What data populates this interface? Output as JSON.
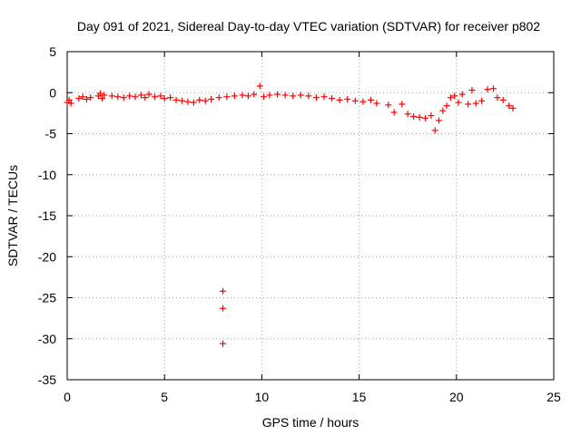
{
  "chart_data": {
    "type": "scatter",
    "title": "Day 091 of 2021, Sidereal Day-to-day VTEC variation (SDTVAR) for receiver p802",
    "xlabel": "GPS time / hours",
    "ylabel": "SDTVAR / TECUs",
    "xlim": [
      0,
      25
    ],
    "ylim": [
      -35,
      5
    ],
    "xticks": [
      0,
      5,
      10,
      15,
      20,
      25
    ],
    "yticks": [
      5,
      0,
      -5,
      -10,
      -15,
      -20,
      -25,
      -30,
      -35
    ],
    "grid": true,
    "marker": "+",
    "color": "#ff0000",
    "series": [
      {
        "name": "SDTVAR",
        "points": [
          [
            0.0,
            -1.2
          ],
          [
            0.1,
            -0.9
          ],
          [
            0.2,
            -1.3
          ],
          [
            0.6,
            -0.7
          ],
          [
            0.8,
            -0.5
          ],
          [
            1.0,
            -0.8
          ],
          [
            1.2,
            -0.6
          ],
          [
            1.6,
            -0.4
          ],
          [
            1.7,
            -0.1
          ],
          [
            1.8,
            -0.7
          ],
          [
            1.9,
            -0.3
          ],
          [
            2.3,
            -0.4
          ],
          [
            2.6,
            -0.5
          ],
          [
            2.9,
            -0.6
          ],
          [
            3.2,
            -0.4
          ],
          [
            3.5,
            -0.5
          ],
          [
            3.8,
            -0.3
          ],
          [
            4.0,
            -0.6
          ],
          [
            4.2,
            -0.2
          ],
          [
            4.5,
            -0.5
          ],
          [
            4.8,
            -0.4
          ],
          [
            5.0,
            -0.7
          ],
          [
            5.3,
            -0.6
          ],
          [
            5.6,
            -0.9
          ],
          [
            5.9,
            -1.0
          ],
          [
            6.2,
            -1.1
          ],
          [
            6.5,
            -1.2
          ],
          [
            6.8,
            -0.9
          ],
          [
            7.1,
            -1.0
          ],
          [
            7.4,
            -0.8
          ],
          [
            7.8,
            -0.6
          ],
          [
            8.2,
            -0.5
          ],
          [
            8.6,
            -0.4
          ],
          [
            9.0,
            -0.3
          ],
          [
            9.3,
            -0.4
          ],
          [
            9.6,
            -0.2
          ],
          [
            9.9,
            0.8
          ],
          [
            10.1,
            -0.5
          ],
          [
            10.4,
            -0.3
          ],
          [
            10.8,
            -0.2
          ],
          [
            11.2,
            -0.3
          ],
          [
            11.6,
            -0.4
          ],
          [
            12.0,
            -0.3
          ],
          [
            12.4,
            -0.4
          ],
          [
            12.8,
            -0.6
          ],
          [
            13.2,
            -0.5
          ],
          [
            13.6,
            -0.7
          ],
          [
            14.0,
            -0.9
          ],
          [
            14.4,
            -0.8
          ],
          [
            14.8,
            -1.0
          ],
          [
            15.2,
            -1.1
          ],
          [
            15.6,
            -0.9
          ],
          [
            15.9,
            -1.3
          ],
          [
            16.5,
            -1.5
          ],
          [
            16.8,
            -2.4
          ],
          [
            17.2,
            -1.4
          ],
          [
            17.5,
            -2.6
          ],
          [
            17.8,
            -2.9
          ],
          [
            18.1,
            -3.0
          ],
          [
            18.4,
            -3.1
          ],
          [
            18.7,
            -2.8
          ],
          [
            18.9,
            -4.6
          ],
          [
            19.1,
            -3.4
          ],
          [
            19.3,
            -2.2
          ],
          [
            19.5,
            -1.6
          ],
          [
            19.7,
            -0.6
          ],
          [
            19.9,
            -0.4
          ],
          [
            20.1,
            -1.2
          ],
          [
            20.3,
            -0.2
          ],
          [
            20.6,
            -1.4
          ],
          [
            20.8,
            0.3
          ],
          [
            21.0,
            -1.3
          ],
          [
            21.3,
            -1.0
          ],
          [
            21.6,
            0.4
          ],
          [
            21.9,
            0.5
          ],
          [
            22.1,
            -0.6
          ],
          [
            22.4,
            -0.9
          ],
          [
            22.7,
            -1.6
          ],
          [
            22.9,
            -1.9
          ],
          [
            8.0,
            -24.2
          ],
          [
            8.0,
            -26.3
          ],
          [
            8.0,
            -30.6
          ]
        ]
      }
    ]
  }
}
